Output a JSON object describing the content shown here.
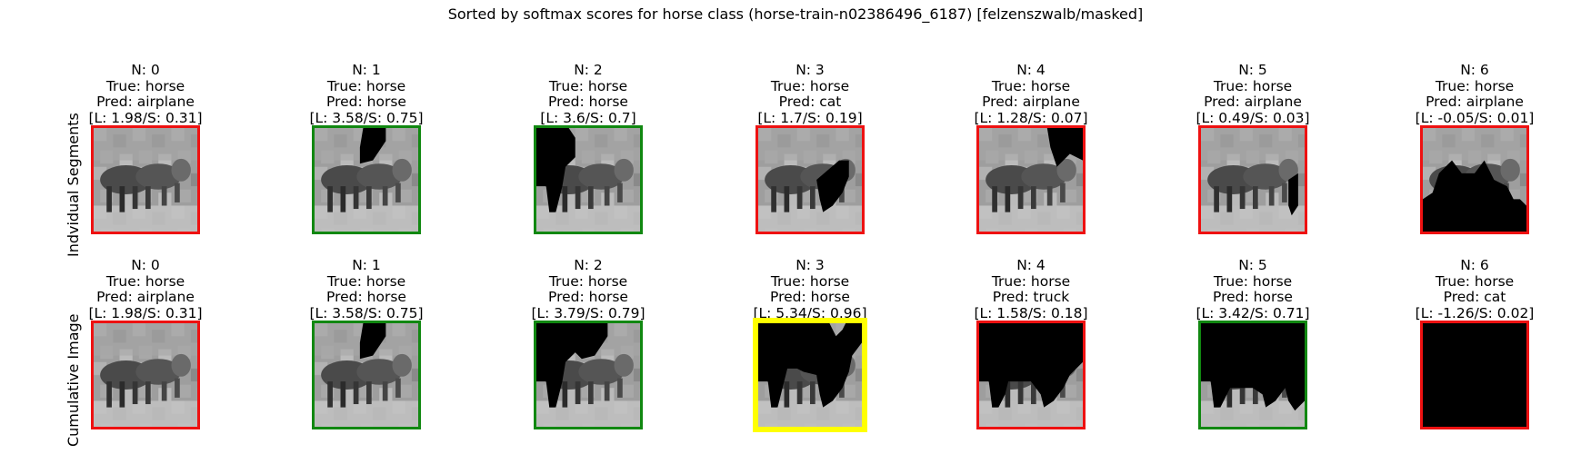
{
  "title": "Sorted by softmax scores for horse class (horse-train-n02386496_6187) [felzenszwalb/masked]",
  "colors": {
    "incorrect": "#ee1111",
    "correct": "#118811",
    "best": "#ffff00"
  },
  "rows": [
    {
      "label": "Indvidual Segments",
      "cells": [
        {
          "n": "N: 0",
          "true_label": "True: horse",
          "pred": "Pred: airplane",
          "score": "[L: 1.98/S: 0.31]",
          "status": "incorrect",
          "mask": "none"
        },
        {
          "n": "N: 1",
          "true_label": "True: horse",
          "pred": "Pred: horse",
          "score": "[L: 3.58/S: 0.75]",
          "status": "correct",
          "mask": "seg1"
        },
        {
          "n": "N: 2",
          "true_label": "True: horse",
          "pred": "Pred: horse",
          "score": "[L: 3.6/S: 0.7]",
          "status": "correct",
          "mask": "seg2"
        },
        {
          "n": "N: 3",
          "true_label": "True: horse",
          "pred": "Pred: cat",
          "score": "[L: 1.7/S: 0.19]",
          "status": "incorrect",
          "mask": "seg3"
        },
        {
          "n": "N: 4",
          "true_label": "True: horse",
          "pred": "Pred: airplane",
          "score": "[L: 1.28/S: 0.07]",
          "status": "incorrect",
          "mask": "seg4"
        },
        {
          "n": "N: 5",
          "true_label": "True: horse",
          "pred": "Pred: airplane",
          "score": "[L: 0.49/S: 0.03]",
          "status": "incorrect",
          "mask": "seg5"
        },
        {
          "n": "N: 6",
          "true_label": "True: horse",
          "pred": "Pred: airplane",
          "score": "[L: -0.05/S: 0.01]",
          "status": "incorrect",
          "mask": "seg6"
        }
      ]
    },
    {
      "label": "Cumulative Image",
      "cells": [
        {
          "n": "N: 0",
          "true_label": "True: horse",
          "pred": "Pred: airplane",
          "score": "[L: 1.98/S: 0.31]",
          "status": "incorrect",
          "mask": "none"
        },
        {
          "n": "N: 1",
          "true_label": "True: horse",
          "pred": "Pred: horse",
          "score": "[L: 3.58/S: 0.75]",
          "status": "correct",
          "mask": "cum1"
        },
        {
          "n": "N: 2",
          "true_label": "True: horse",
          "pred": "Pred: horse",
          "score": "[L: 3.79/S: 0.79]",
          "status": "correct",
          "mask": "cum2"
        },
        {
          "n": "N: 3",
          "true_label": "True: horse",
          "pred": "Pred: horse",
          "score": "[L: 5.34/S: 0.96]",
          "status": "best",
          "mask": "cum3"
        },
        {
          "n": "N: 4",
          "true_label": "True: horse",
          "pred": "Pred: truck",
          "score": "[L: 1.58/S: 0.18]",
          "status": "incorrect",
          "mask": "cum4"
        },
        {
          "n": "N: 5",
          "true_label": "True: horse",
          "pred": "Pred: horse",
          "score": "[L: 3.42/S: 0.71]",
          "status": "correct",
          "mask": "cum5"
        },
        {
          "n": "N: 6",
          "true_label": "True: horse",
          "pred": "Pred: cat",
          "score": "[L: -1.26/S: 0.02]",
          "status": "incorrect",
          "mask": "full"
        }
      ]
    }
  ]
}
